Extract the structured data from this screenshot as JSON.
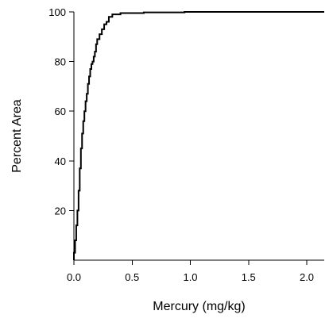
{
  "chart_data": {
    "type": "line",
    "step": true,
    "xlabel": "Mercury (mg/kg)",
    "ylabel": "Percent Area",
    "xlim": [
      0,
      2.15
    ],
    "ylim": [
      0,
      100
    ],
    "x_ticks": [
      {
        "value": 0.0,
        "label": "0.0"
      },
      {
        "value": 0.5,
        "label": "0.5"
      },
      {
        "value": 1.0,
        "label": "1.0"
      },
      {
        "value": 1.5,
        "label": "1.5"
      },
      {
        "value": 2.0,
        "label": "2.0"
      }
    ],
    "y_ticks": [
      {
        "value": 20,
        "label": "20"
      },
      {
        "value": 40,
        "label": "40"
      },
      {
        "value": 60,
        "label": "60"
      },
      {
        "value": 80,
        "label": "80"
      },
      {
        "value": 100,
        "label": "100"
      }
    ],
    "grid": false,
    "line_color": "#000000",
    "series": [
      {
        "values": [
          [
            0.0,
            0
          ],
          [
            0.0,
            3
          ],
          [
            0.01,
            8
          ],
          [
            0.02,
            14
          ],
          [
            0.03,
            20
          ],
          [
            0.04,
            28
          ],
          [
            0.05,
            37
          ],
          [
            0.06,
            45
          ],
          [
            0.07,
            51
          ],
          [
            0.08,
            56
          ],
          [
            0.09,
            60
          ],
          [
            0.1,
            64
          ],
          [
            0.11,
            67
          ],
          [
            0.12,
            71
          ],
          [
            0.13,
            74
          ],
          [
            0.14,
            77
          ],
          [
            0.15,
            79
          ],
          [
            0.16,
            80
          ],
          [
            0.17,
            82
          ],
          [
            0.18,
            84
          ],
          [
            0.19,
            87
          ],
          [
            0.2,
            89
          ],
          [
            0.22,
            91
          ],
          [
            0.24,
            93
          ],
          [
            0.26,
            95
          ],
          [
            0.28,
            96
          ],
          [
            0.3,
            98
          ],
          [
            0.33,
            99
          ],
          [
            0.4,
            99.5
          ],
          [
            0.6,
            99.8
          ],
          [
            0.95,
            100
          ],
          [
            2.15,
            100
          ]
        ]
      }
    ]
  }
}
